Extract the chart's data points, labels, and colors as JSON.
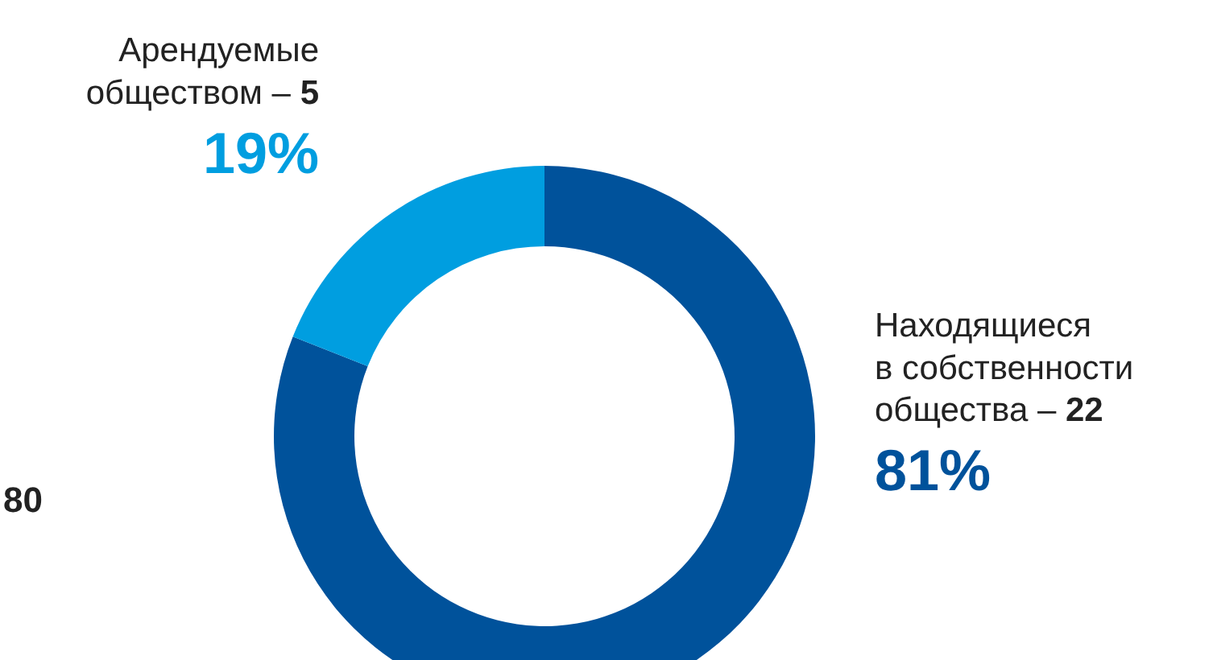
{
  "chart_data": {
    "type": "donut",
    "categories": [
      "Находящиеся в собственности общества – 22",
      "Арендуемые обществом – 5"
    ],
    "values": [
      81,
      19
    ],
    "colors": [
      "#00529b",
      "#009ee0"
    ],
    "value_labels": [
      "81%",
      "19%"
    ],
    "annotations": [
      "80"
    ]
  }
}
